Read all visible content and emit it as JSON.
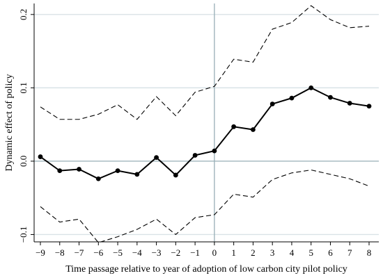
{
  "chart_data": {
    "type": "line",
    "title": "",
    "xlabel": "Time passage relative to year of adoption of low carbon city pilot policy",
    "ylabel": "Dynamic effect of policy",
    "x": [
      -9,
      -8,
      -7,
      -6,
      -5,
      -4,
      -3,
      -2,
      -1,
      0,
      1,
      2,
      3,
      4,
      5,
      6,
      7,
      8
    ],
    "xlim": [
      -9,
      8
    ],
    "ylim": [
      -0.11,
      0.215
    ],
    "xticks": [
      "−9",
      "−8",
      "−7",
      "−6",
      "−5",
      "−4",
      "−3",
      "−2",
      "−1",
      "0",
      "1",
      "2",
      "3",
      "4",
      "5",
      "6",
      "7",
      "8"
    ],
    "yticks": [
      {
        "value": -0.1,
        "label": "−0.1"
      },
      {
        "value": 0.0,
        "label": "0.0"
      },
      {
        "value": 0.1,
        "label": "0.1"
      },
      {
        "value": 0.2,
        "label": "0.2"
      }
    ],
    "grid": "horizontal",
    "reference_lines": {
      "y": 0,
      "x": 0
    },
    "series": [
      {
        "style": "solid-markers",
        "color": "#000000",
        "values": [
          0.006,
          -0.013,
          -0.011,
          -0.024,
          -0.013,
          -0.018,
          0.005,
          -0.019,
          0.008,
          0.014,
          0.047,
          0.043,
          0.078,
          0.086,
          0.1,
          0.087,
          0.079,
          0.075
        ]
      },
      {
        "style": "dashed",
        "color": "#000000",
        "values": [
          0.074,
          0.057,
          0.057,
          0.064,
          0.077,
          0.057,
          0.088,
          0.062,
          0.094,
          0.102,
          0.139,
          0.135,
          0.18,
          0.189,
          0.212,
          0.193,
          0.182,
          0.184
        ]
      },
      {
        "style": "dashed",
        "color": "#000000",
        "values": [
          -0.062,
          -0.083,
          -0.079,
          -0.111,
          -0.103,
          -0.093,
          -0.079,
          -0.1,
          -0.077,
          -0.073,
          -0.045,
          -0.049,
          -0.025,
          -0.016,
          -0.012,
          -0.018,
          -0.024,
          -0.034
        ]
      }
    ]
  }
}
